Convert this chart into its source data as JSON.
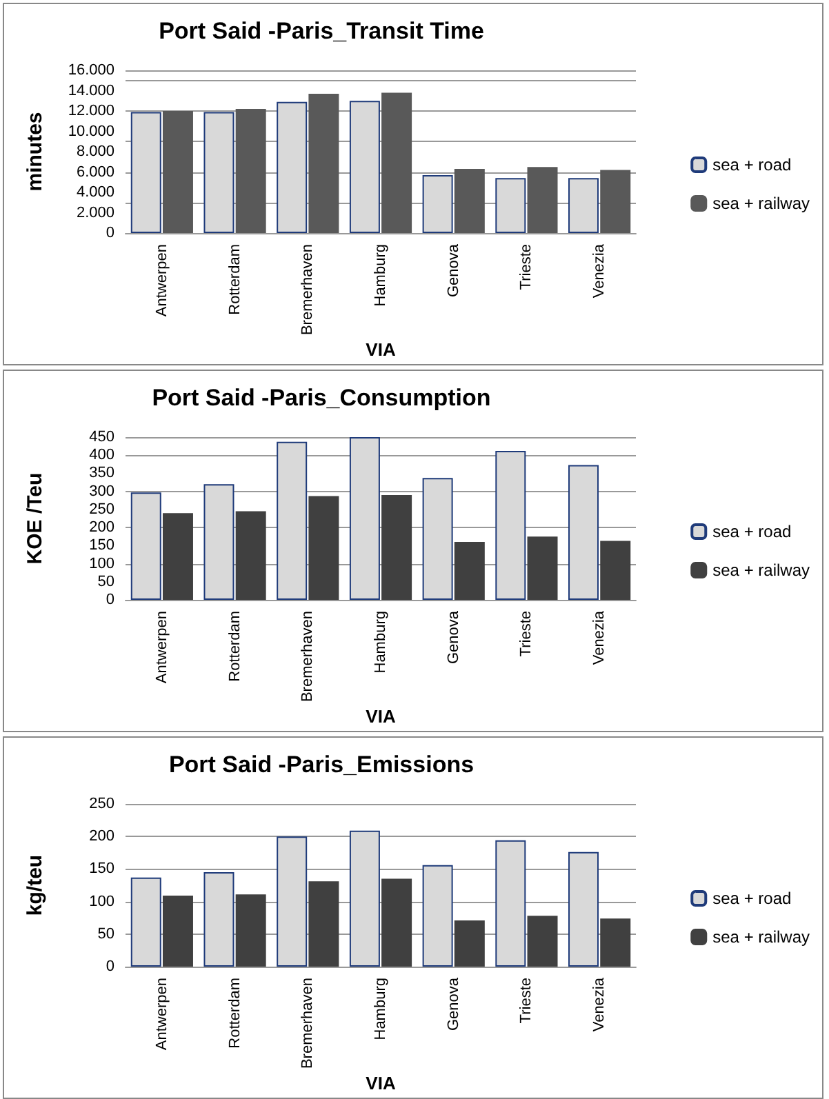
{
  "chart_data": [
    {
      "type": "bar",
      "title": "Port Said -Paris_Transit Time",
      "xlabel": "VIA",
      "ylabel": "minutes",
      "categories": [
        "Antwerpen",
        "Rotterdam",
        "Bremerhaven",
        "Hamburg",
        "Genova",
        "Trieste",
        "Venezia"
      ],
      "series": [
        {
          "name": "sea + road",
          "color": "#d9d9d9",
          "values": [
            11900,
            11900,
            12900,
            13000,
            5700,
            5400,
            5400
          ]
        },
        {
          "name": "sea + railway",
          "color": "#595959",
          "values": [
            12000,
            12200,
            13700,
            13800,
            6300,
            6500,
            6200
          ]
        }
      ],
      "ylim": [
        0,
        16000
      ],
      "yticks": [
        {
          "value": 0,
          "label": "0"
        },
        {
          "value": 2000,
          "label": "2.000"
        },
        {
          "value": 4000,
          "label": "4.000"
        },
        {
          "value": 6000,
          "label": "6.000"
        },
        {
          "value": 8000,
          "label": "8.000"
        },
        {
          "value": 10000,
          "label": "10.000"
        },
        {
          "value": 12000,
          "label": "12.000"
        },
        {
          "value": 14000,
          "label": "14.000"
        },
        {
          "value": 16000,
          "label": "16.000"
        }
      ],
      "grid": "y",
      "legend": "right"
    },
    {
      "type": "bar",
      "title": "Port Said -Paris_Consumption",
      "xlabel": "VIA",
      "ylabel": "KOE /Teu",
      "categories": [
        "Antwerpen",
        "Rotterdam",
        "Bremerhaven",
        "Hamburg",
        "Genova",
        "Trieste",
        "Venezia"
      ],
      "series": [
        {
          "name": "sea + road",
          "color": "#d9d9d9",
          "values": [
            297,
            320,
            437,
            450,
            337,
            412,
            373
          ]
        },
        {
          "name": "sea + railway",
          "color": "#404040",
          "values": [
            240,
            245,
            287,
            290,
            160,
            175,
            163
          ]
        }
      ],
      "ylim": [
        0,
        450
      ],
      "yticks": [
        0,
        50,
        100,
        150,
        200,
        250,
        300,
        350,
        400,
        450
      ],
      "grid": "y",
      "legend": "right"
    },
    {
      "type": "bar",
      "title": "Port Said -Paris_Emissions",
      "xlabel": "VIA",
      "ylabel": "kg/teu",
      "categories": [
        "Antwerpen",
        "Rotterdam",
        "Bremerhaven",
        "Hamburg",
        "Genova",
        "Trieste",
        "Venezia"
      ],
      "series": [
        {
          "name": "sea + road",
          "color": "#d9d9d9",
          "values": [
            137,
            145,
            200,
            209,
            156,
            194,
            176
          ]
        },
        {
          "name": "sea + railway",
          "color": "#404040",
          "values": [
            109,
            111,
            131,
            135,
            71,
            78,
            74
          ]
        }
      ],
      "ylim": [
        0,
        250
      ],
      "yticks": [
        0,
        50,
        100,
        150,
        200,
        250
      ],
      "grid": "y",
      "legend": "right"
    }
  ]
}
